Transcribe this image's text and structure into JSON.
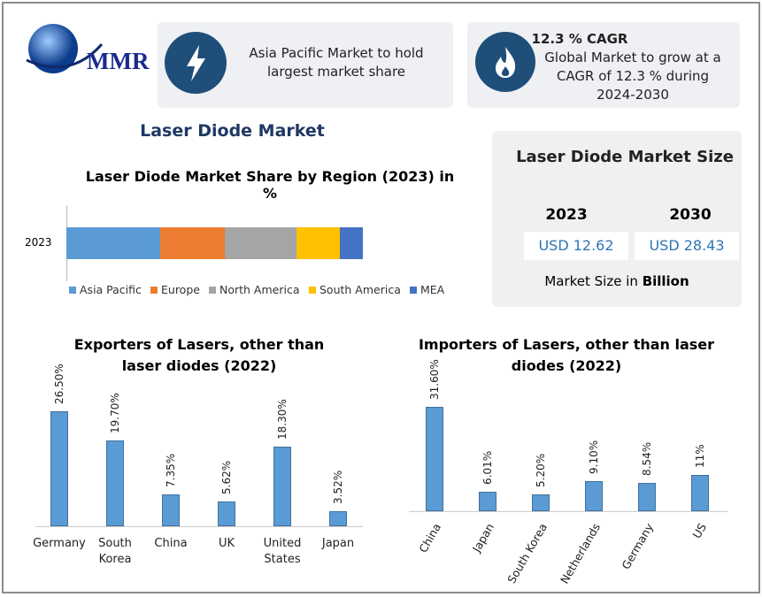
{
  "header": {
    "logo": "MMR",
    "highlight": "Asia Pacific Market to hold largest market share",
    "cagr_title": "12.3 % CAGR",
    "cagr_text": "Global Market to grow at a CAGR of 12.3 % during 2024-2030"
  },
  "title": "Laser Diode Market",
  "market_size": {
    "title": "Laser Diode Market Size",
    "years": [
      "2023",
      "2030"
    ],
    "values": [
      "USD 12.62",
      "USD 28.43"
    ],
    "note": "Market Size in",
    "unit": "Billion"
  },
  "chart_data": [
    {
      "type": "stacked_bar",
      "title": "Laser Diode Market Share by Region (2023) in %",
      "categories": [
        "2023"
      ],
      "series": [
        {
          "name": "Asia Pacific",
          "color": "#5b9bd5",
          "values": [
            31.6
          ]
        },
        {
          "name": "Europe",
          "color": "#ed7d31",
          "values": [
            21.8
          ]
        },
        {
          "name": "North America",
          "color": "#a5a5a5",
          "values": [
            24.2
          ]
        },
        {
          "name": "South America",
          "color": "#ffc000",
          "values": [
            14.6
          ]
        },
        {
          "name": "MEA",
          "color": "#4472c4",
          "values": [
            7.8
          ]
        }
      ]
    },
    {
      "type": "bar",
      "title": "Exporters of Lasers, other than laser diodes (2022)",
      "categories": [
        "Germany",
        "South Korea",
        "China",
        "UK",
        "United States",
        "Japan"
      ],
      "values": [
        26.5,
        19.7,
        7.35,
        5.62,
        18.3,
        3.52
      ],
      "value_labels": [
        "26.50%",
        "19.70%",
        "7.35%",
        "5.62%",
        "18.30%",
        "3.52%"
      ],
      "color": "#5b9bd5"
    },
    {
      "type": "bar",
      "title": "Importers of Lasers, other than laser diodes (2022)",
      "categories": [
        "China",
        "Japan",
        "South Korea",
        "Netherlands",
        "Germany",
        "US"
      ],
      "values": [
        31.6,
        6.01,
        5.2,
        9.1,
        8.54,
        11
      ],
      "value_labels": [
        "31.60%",
        "6.01%",
        "5.20%",
        "9.10%",
        "8.54%",
        "11%"
      ],
      "color": "#5b9bd5"
    }
  ]
}
